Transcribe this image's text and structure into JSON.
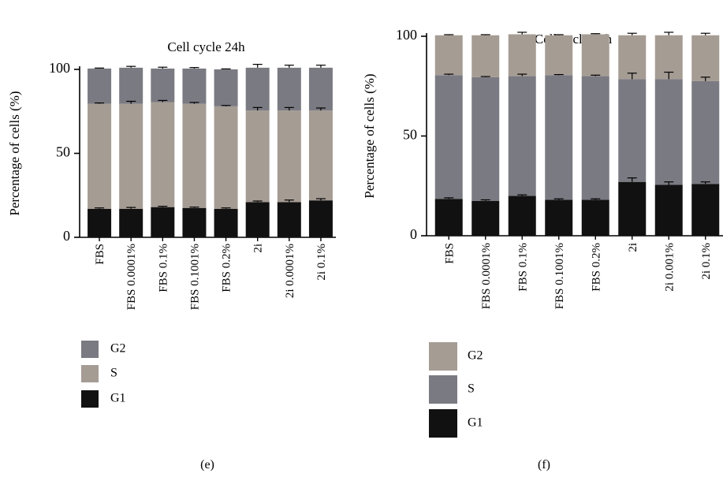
{
  "chart_data": [
    {
      "panel_label": "(e)",
      "type": "bar",
      "stacked": true,
      "title": "Cell cycle 24h",
      "xlabel": "",
      "ylabel": "Percentage of cells (%)",
      "ylim": [
        0,
        100
      ],
      "yticks": [
        0,
        50,
        100
      ],
      "categories": [
        "FBS",
        "FBS 0.0001%",
        "FBS 0.1%",
        "FBS 0.1001%",
        "FBS 0.2%",
        "2i",
        "2i 0.0001%",
        "2i 0.1%"
      ],
      "series": [
        {
          "name": "G1",
          "color": "#111111",
          "values": [
            17,
            17,
            18,
            17.5,
            17,
            21,
            21,
            22
          ],
          "errors": [
            0.5,
            0.8,
            0.5,
            0.5,
            0.5,
            0.6,
            1.2,
            1.0
          ]
        },
        {
          "name": "S",
          "color": "#a59c94",
          "values": [
            62.5,
            62.5,
            62.5,
            62,
            61,
            54.5,
            54.5,
            53.5
          ],
          "errors": [
            0.5,
            1.5,
            1.0,
            0.8,
            0.5,
            1.8,
            1.8,
            1.5
          ]
        },
        {
          "name": "G2",
          "color": "#7a7a82",
          "values": [
            21,
            21.5,
            20,
            21,
            22,
            25.5,
            25.5,
            25.5
          ],
          "errors": [
            0.3,
            0.8,
            0.8,
            0.6,
            0.3,
            2.0,
            1.5,
            1.5
          ]
        }
      ],
      "legend": {
        "placement": "bottom-left",
        "order": [
          "G2",
          "S",
          "G1"
        ]
      },
      "grid": false
    },
    {
      "panel_label": "(f)",
      "type": "bar",
      "stacked": true,
      "title": "Cell cycle 48h",
      "xlabel": "",
      "ylabel": "Percentage of cells (%)",
      "ylim": [
        0,
        100
      ],
      "yticks": [
        0,
        50,
        100
      ],
      "categories": [
        "FBS",
        "FBS 0.0001%",
        "FBS 0.1%",
        "FBS 0.1001%",
        "FBS 0.2%",
        "2i",
        "2i 0.001%",
        "2i 0.1%"
      ],
      "series": [
        {
          "name": "G1",
          "color": "#111111",
          "values": [
            18.5,
            17.5,
            20,
            18,
            18,
            27,
            25.5,
            26
          ],
          "errors": [
            0.5,
            0.5,
            0.5,
            0.5,
            0.5,
            2.0,
            1.5,
            1.0
          ]
        },
        {
          "name": "S",
          "color": "#7a7a82",
          "values": [
            62,
            62,
            60,
            62.5,
            62,
            51.5,
            53,
            51.5
          ],
          "errors": [
            0.5,
            0.3,
            1.0,
            0.3,
            0.5,
            3.0,
            3.5,
            2.0
          ]
        },
        {
          "name": "G2",
          "color": "#a59c94",
          "values": [
            20,
            21,
            21,
            20,
            21,
            22,
            22,
            23
          ],
          "errors": [
            0.3,
            0.3,
            1.0,
            0.3,
            0.3,
            1.0,
            1.5,
            1.0
          ]
        }
      ],
      "legend": {
        "placement": "bottom-left",
        "order": [
          "G2",
          "S",
          "G1"
        ]
      },
      "grid": false
    }
  ]
}
